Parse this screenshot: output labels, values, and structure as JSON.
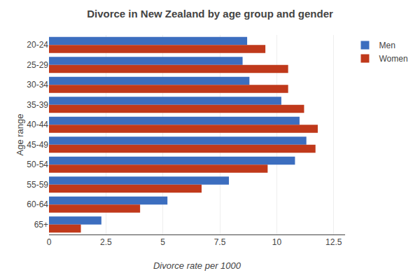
{
  "chart_data": {
    "type": "bar",
    "orientation": "horizontal",
    "title": "Divorce in New Zealand by age group and gender",
    "xlabel": "Divorce rate per 1000",
    "ylabel": "Age range",
    "categories": [
      "20-24",
      "25-29",
      "30-34",
      "35-39",
      "40-44",
      "45-49",
      "50-54",
      "55-59",
      "60-64",
      "65+"
    ],
    "series": [
      {
        "name": "Men",
        "color": "#3C6EBF",
        "values": [
          8.7,
          8.5,
          8.8,
          10.2,
          11.0,
          11.3,
          10.8,
          7.9,
          5.2,
          2.3
        ]
      },
      {
        "name": "Women",
        "color": "#C0391B",
        "values": [
          9.5,
          10.5,
          10.5,
          11.2,
          11.8,
          11.7,
          9.6,
          6.7,
          4.0,
          1.4
        ]
      }
    ],
    "xlim": [
      0,
      13
    ],
    "xticks": [
      0,
      2.5,
      5,
      7.5,
      10,
      12.5
    ],
    "grid": true,
    "legend": "upper right"
  }
}
